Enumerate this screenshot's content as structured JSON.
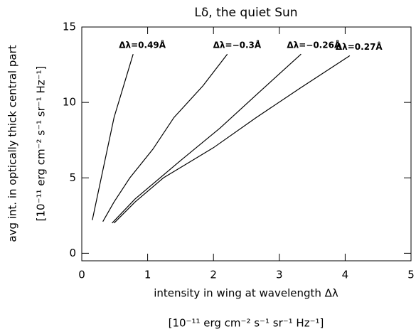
{
  "chart_data": {
    "type": "line",
    "title": "Lδ, the quiet Sun",
    "x_label": "intensity in wing at wavelength Δλ",
    "x_label_units": "[10⁻¹¹ erg cm⁻² s⁻¹ sr⁻¹ Hz⁻¹]",
    "y_label": "avg int. in optically thick central part",
    "y_label_units": "[10⁻¹¹ erg cm⁻² s⁻¹ sr⁻¹ Hz⁻¹]",
    "xlim": [
      0,
      5
    ],
    "xticks": [
      0,
      1,
      2,
      3,
      4,
      5
    ],
    "ylim": [
      -0.5,
      15
    ],
    "yticks": [
      0,
      5,
      10,
      15
    ],
    "series": [
      {
        "name": "Δλ=0.49Å",
        "color": "#000000",
        "x": [
          0.16,
          0.32,
          0.49,
          0.78
        ],
        "values": [
          2.2,
          5.5,
          9.0,
          13.2
        ]
      },
      {
        "name": "Δλ=−0.3Å",
        "color": "#000000",
        "x": [
          0.32,
          0.49,
          0.73,
          1.08,
          1.4,
          1.84,
          2.21
        ],
        "values": [
          2.1,
          3.4,
          5.0,
          6.9,
          9.0,
          11.1,
          13.2
        ]
      },
      {
        "name": "Δλ=−0.26Å",
        "color": "#000000",
        "x": [
          0.46,
          0.81,
          1.46,
          2.1,
          2.75,
          3.33
        ],
        "values": [
          2.0,
          3.6,
          6.0,
          8.3,
          10.9,
          13.2
        ]
      },
      {
        "name": "Δλ=0.27Å",
        "color": "#000000",
        "x": [
          0.49,
          0.81,
          1.24,
          2.0,
          2.65,
          3.3,
          4.07
        ],
        "values": [
          2.0,
          3.4,
          5.0,
          7.0,
          9.0,
          10.9,
          13.1
        ]
      }
    ]
  }
}
